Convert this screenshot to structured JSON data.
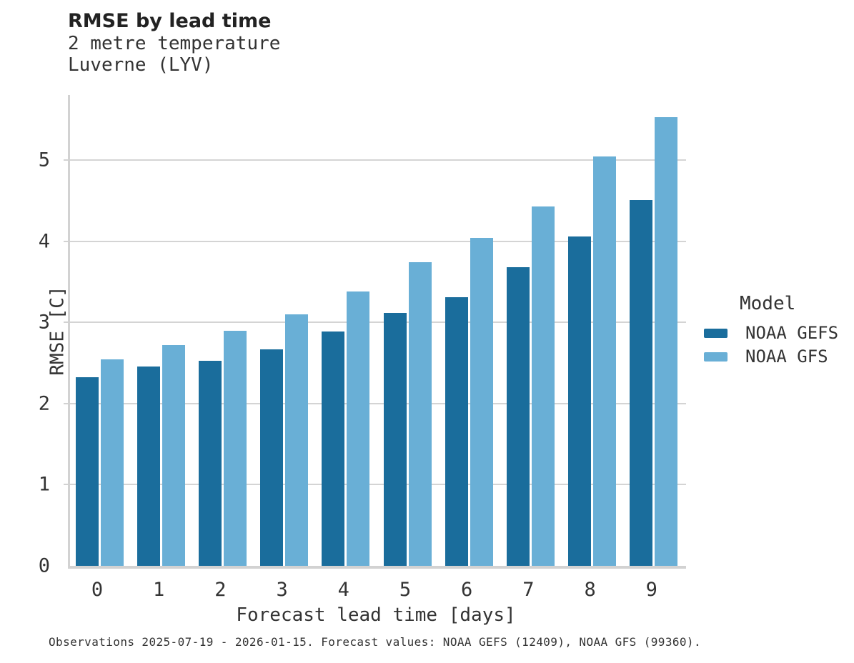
{
  "header": {
    "title": "RMSE by lead time",
    "subtitle_line1": "2 metre temperature",
    "subtitle_line2": "Luverne (LYV)"
  },
  "chart_data": {
    "type": "bar",
    "title": "RMSE by lead time",
    "subtitle": [
      "2 metre temperature",
      "Luverne (LYV)"
    ],
    "categories": [
      "0",
      "1",
      "2",
      "3",
      "4",
      "5",
      "6",
      "7",
      "8",
      "9"
    ],
    "series": [
      {
        "name": "NOAA GEFS",
        "color": "#1a6d9c",
        "values": [
          2.32,
          2.46,
          2.53,
          2.67,
          2.89,
          3.12,
          3.31,
          3.68,
          4.06,
          4.51
        ]
      },
      {
        "name": "NOAA GFS",
        "color": "#69afd6",
        "values": [
          2.54,
          2.72,
          2.9,
          3.1,
          3.38,
          3.74,
          4.04,
          4.43,
          5.04,
          5.53
        ]
      }
    ],
    "xlabel": "Forecast lead time [days]",
    "ylabel": "RMSE [C]",
    "ylim": [
      0,
      5.8
    ],
    "yticks": [
      0,
      1,
      2,
      3,
      4,
      5
    ],
    "grid": "horizontal-light-gray",
    "legend_title": "Model",
    "legend_position": "right"
  },
  "legend": {
    "title": "Model"
  },
  "caption": "Observations 2025-07-19 - 2026-01-15. Forecast values: NOAA GEFS (12409), NOAA GFS (99360)."
}
